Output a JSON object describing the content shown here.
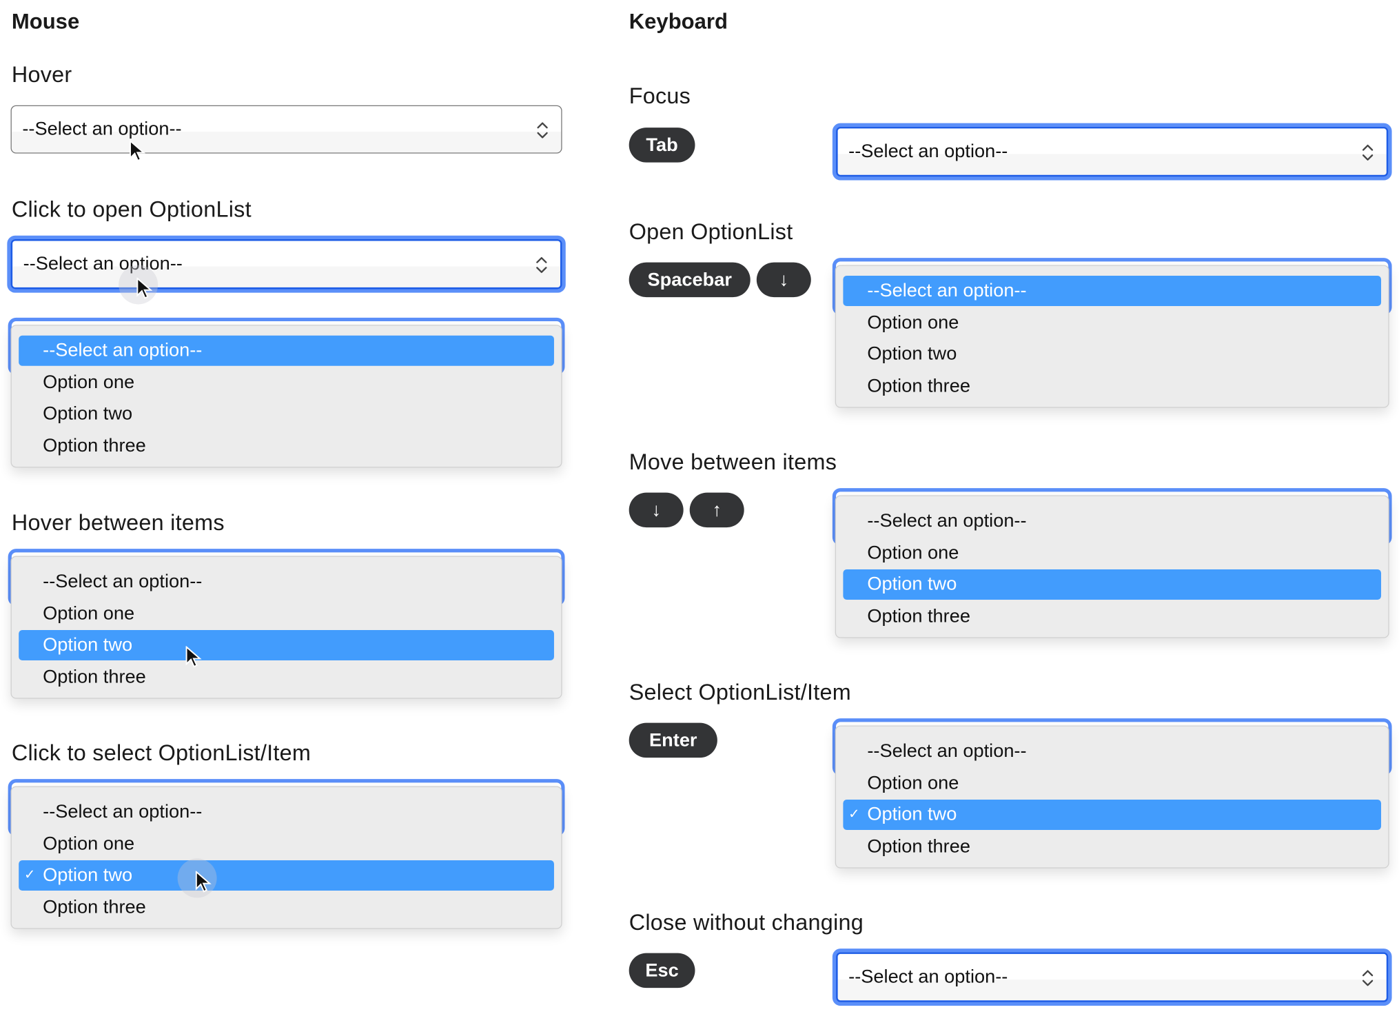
{
  "options": [
    "--Select an option--",
    "Option one",
    "Option two",
    "Option three"
  ],
  "colors": {
    "focus_ring": "#5b8ff9",
    "focus_border": "#1d5ce6",
    "highlight": "#429cfd",
    "key_bg": "#333436",
    "list_bg": "#ececec"
  },
  "mouse": {
    "heading": "Mouse",
    "sections": [
      {
        "label": "Hover",
        "controls": [
          {
            "type": "select",
            "state": "hover",
            "value": "--Select an option--"
          }
        ],
        "cursor": "arrow"
      },
      {
        "label": "Click to open OptionList",
        "controls": [
          {
            "type": "select",
            "state": "focus",
            "value": "--Select an option--"
          },
          {
            "type": "list",
            "highlighted": 0,
            "checked": null
          }
        ],
        "cursor": "arrow-click"
      },
      {
        "label": "Hover between items",
        "controls": [
          {
            "type": "list",
            "highlighted": 2,
            "checked": null
          }
        ],
        "cursor": "arrow"
      },
      {
        "label": "Click to select OptionList/Item",
        "controls": [
          {
            "type": "list",
            "highlighted": 2,
            "checked": 2
          }
        ],
        "cursor": "arrow-click"
      }
    ]
  },
  "keyboard": {
    "heading": "Keyboard",
    "sections": [
      {
        "label": "Focus",
        "keys": [
          "Tab"
        ],
        "control": {
          "type": "select",
          "state": "focus",
          "value": "--Select an option--"
        }
      },
      {
        "label": "Open OptionList",
        "keys": [
          "Spacebar",
          "↓"
        ],
        "control": {
          "type": "list",
          "highlighted": 0,
          "checked": null
        }
      },
      {
        "label": "Move between items",
        "keys": [
          "↓",
          "↑"
        ],
        "control": {
          "type": "list",
          "highlighted": 2,
          "checked": null
        }
      },
      {
        "label": "Select OptionList/Item",
        "keys": [
          "Enter"
        ],
        "control": {
          "type": "list",
          "highlighted": 2,
          "checked": 2
        }
      },
      {
        "label": "Close without changing",
        "keys": [
          "Esc"
        ],
        "control": {
          "type": "select",
          "state": "focus",
          "value": "--Select an option--"
        }
      }
    ]
  }
}
